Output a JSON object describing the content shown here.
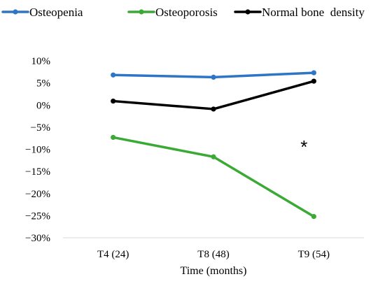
{
  "chart_data": {
    "type": "line",
    "title": "",
    "xlabel": "Time (months)",
    "ylabel": "",
    "categories": [
      "T4 (24)",
      "T8 (48)",
      "T9 (54)"
    ],
    "ylim": [
      -30,
      10
    ],
    "yticks": [
      10,
      5,
      0,
      -5,
      -10,
      -15,
      -20,
      -25,
      -30
    ],
    "yticks_labels": [
      "10%",
      "5%",
      "0%",
      "−5%",
      "−10%",
      "−15%",
      "−20%",
      "−25%",
      "−30%"
    ],
    "grid": false,
    "legend_position": "top",
    "series": [
      {
        "name": "Osteopenia",
        "color": "#2f75c6",
        "values": [
          6.8,
          6.3,
          7.3
        ]
      },
      {
        "name": "Osteoporosis",
        "color": "#3aaa35",
        "values": [
          -7.3,
          -11.7,
          -25.2
        ]
      },
      {
        "name": "Normal bone  density",
        "color": "#000000",
        "values": [
          0.9,
          -0.9,
          5.4
        ]
      }
    ],
    "annotations": [
      {
        "text": "*",
        "x": "T9 (54)",
        "y": -8
      }
    ]
  }
}
